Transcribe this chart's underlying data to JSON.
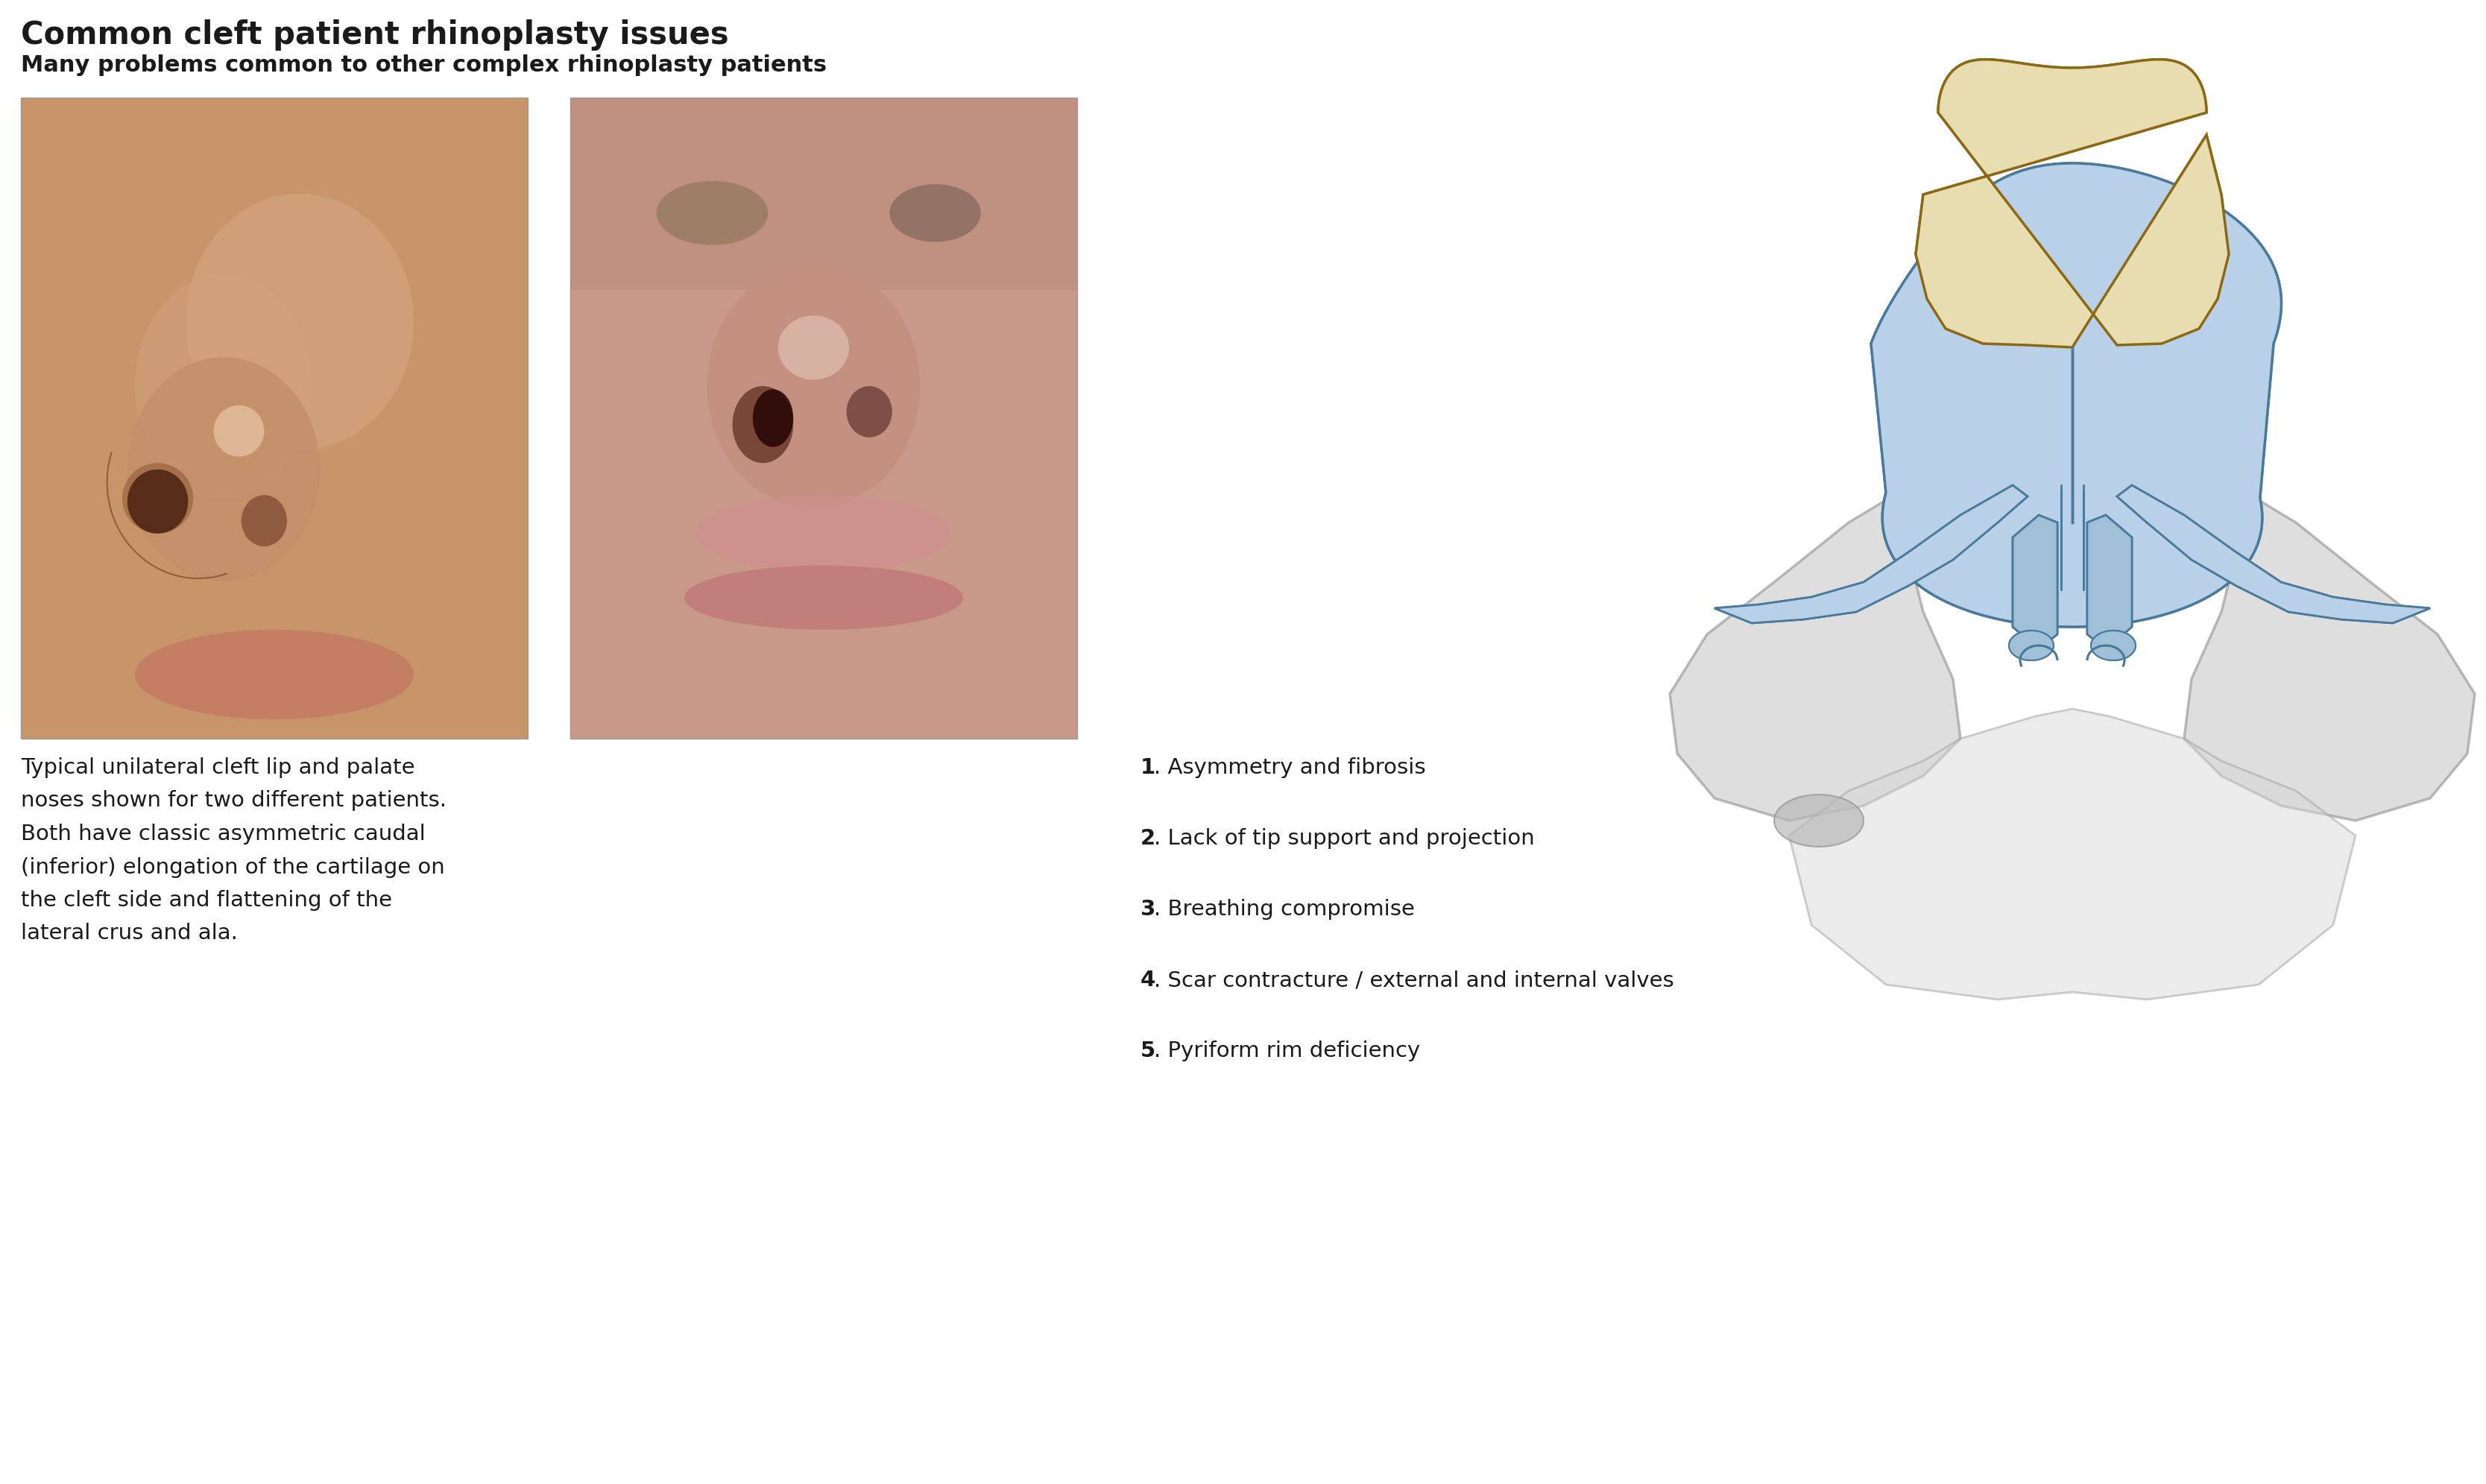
{
  "title": "Common cleft patient rhinoplasty issues",
  "subtitle": "Many problems common to other complex rhinoplasty patients",
  "title_fontsize": 30,
  "subtitle_fontsize": 22,
  "caption_left": "Typical unilateral cleft lip and palate\nnoses shown for two different patients.\nBoth have classic asymmetric caudal\n(inferior) elongation of the cartilage on\nthe cleft side and flattening of the\nlateral crus and ala.",
  "numbered_items": [
    {
      "num": "1",
      "text": ". Asymmetry and fibrosis"
    },
    {
      "num": "2",
      "text": ". Lack of tip support and projection"
    },
    {
      "num": "3",
      "text": ". Breathing compromise"
    },
    {
      "num": "4",
      "text": ". Scar contracture / external and internal valves"
    },
    {
      "num": "5",
      "text": ". Pyriform rim deficiency"
    }
  ],
  "bg_color": "#ffffff",
  "text_color": "#1a1a1a",
  "caption_fontsize": 21,
  "list_fontsize": 21,
  "photo1_bg": "#c8916a",
  "photo2_bg": "#c8907a",
  "diagram_colors": {
    "bone": "#e8ddb0",
    "bone_outline": "#8B6914",
    "cartilage": "#b8d0e8",
    "outline": "#4a7a9b",
    "gray_ala": "#b0b0b0",
    "gray_outline": "#909090",
    "columella": "#a0c0d8"
  }
}
